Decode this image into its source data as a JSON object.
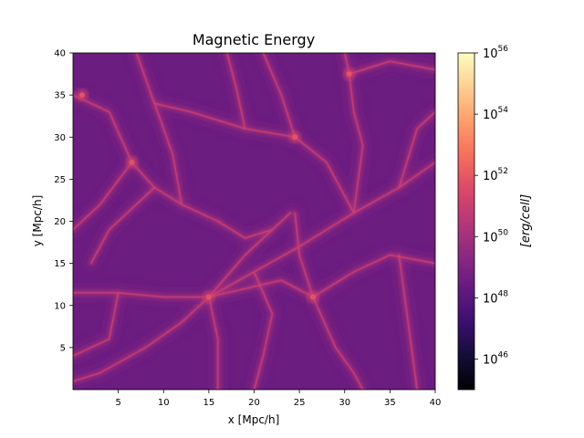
{
  "chart_data": {
    "type": "heatmap",
    "title": "Magnetic Energy",
    "xlabel": "x [Mpc/h]",
    "ylabel": "y [Mpc/h]",
    "xlim": [
      0,
      40
    ],
    "ylim": [
      0,
      40
    ],
    "xticks": [
      "5",
      "10",
      "15",
      "20",
      "25",
      "30",
      "35",
      "40"
    ],
    "yticks": [
      "5",
      "10",
      "15",
      "20",
      "25",
      "30",
      "35",
      "40"
    ],
    "colormap": "magma",
    "colorbar": {
      "label": "[erg/cell]",
      "scale": "log",
      "range_exponent": [
        45,
        56
      ],
      "ticks": [
        {
          "base": "10",
          "exp": "46"
        },
        {
          "base": "10",
          "exp": "48"
        },
        {
          "base": "10",
          "exp": "50"
        },
        {
          "base": "10",
          "exp": "52"
        },
        {
          "base": "10",
          "exp": "54"
        },
        {
          "base": "10",
          "exp": "56"
        }
      ]
    },
    "features": {
      "background_exponent": 48.5,
      "node_exponent": 52,
      "nodes": [
        {
          "x": 15,
          "y": 11
        },
        {
          "x": 26.5,
          "y": 11
        },
        {
          "x": 30.5,
          "y": 37.5
        },
        {
          "x": 1,
          "y": 35
        },
        {
          "x": 6.5,
          "y": 27
        },
        {
          "x": 24.5,
          "y": 30
        }
      ],
      "filaments": [
        [
          [
            0,
            11.5
          ],
          [
            5,
            11.5
          ],
          [
            10,
            11
          ],
          [
            15,
            11
          ]
        ],
        [
          [
            15,
            11
          ],
          [
            20,
            14
          ],
          [
            25,
            17
          ],
          [
            31,
            21
          ],
          [
            36,
            24
          ],
          [
            40,
            27
          ]
        ],
        [
          [
            15,
            11
          ],
          [
            12,
            8
          ],
          [
            8,
            5
          ],
          [
            3,
            2
          ],
          [
            0,
            1
          ]
        ],
        [
          [
            15,
            11
          ],
          [
            16,
            6
          ],
          [
            16,
            0
          ]
        ],
        [
          [
            15,
            11
          ],
          [
            19,
            16
          ],
          [
            22,
            19
          ],
          [
            24,
            21
          ]
        ],
        [
          [
            26.5,
            11
          ],
          [
            23,
            13
          ],
          [
            19,
            12
          ],
          [
            15,
            11
          ]
        ],
        [
          [
            26.5,
            11
          ],
          [
            29,
            5
          ],
          [
            31,
            2
          ],
          [
            32,
            0
          ]
        ],
        [
          [
            26.5,
            11
          ],
          [
            31,
            14
          ],
          [
            35,
            16
          ],
          [
            40,
            15
          ]
        ],
        [
          [
            26.5,
            11
          ],
          [
            25,
            16
          ],
          [
            24.5,
            21
          ]
        ],
        [
          [
            31,
            21
          ],
          [
            32,
            29
          ],
          [
            31,
            33
          ],
          [
            30.5,
            37.5
          ],
          [
            30,
            40
          ]
        ],
        [
          [
            30.5,
            37.5
          ],
          [
            35,
            39
          ],
          [
            40,
            38
          ]
        ],
        [
          [
            0,
            35
          ],
          [
            4,
            33
          ],
          [
            6.5,
            27
          ],
          [
            9,
            24
          ],
          [
            12,
            22
          ],
          [
            16,
            20
          ]
        ],
        [
          [
            6.5,
            27
          ],
          [
            3,
            22
          ],
          [
            0,
            19
          ]
        ],
        [
          [
            16,
            20
          ],
          [
            19,
            18
          ],
          [
            22,
            19
          ]
        ],
        [
          [
            24.5,
            30
          ],
          [
            28,
            27
          ],
          [
            31,
            21
          ]
        ],
        [
          [
            24.5,
            30
          ],
          [
            23,
            35
          ],
          [
            21,
            40
          ]
        ],
        [
          [
            24.5,
            30
          ],
          [
            19,
            31
          ],
          [
            13,
            33
          ],
          [
            9,
            34
          ]
        ],
        [
          [
            12,
            22
          ],
          [
            11,
            28
          ],
          [
            9,
            34
          ],
          [
            7,
            40
          ]
        ],
        [
          [
            36,
            24
          ],
          [
            38,
            31
          ],
          [
            40,
            33
          ]
        ],
        [
          [
            5,
            11.5
          ],
          [
            4,
            6
          ],
          [
            0,
            4
          ]
        ],
        [
          [
            20,
            14
          ],
          [
            22,
            9
          ],
          [
            21,
            4
          ],
          [
            20,
            0
          ]
        ],
        [
          [
            36,
            16
          ],
          [
            37,
            8
          ],
          [
            38,
            0
          ]
        ],
        [
          [
            19,
            31
          ],
          [
            18,
            36
          ],
          [
            17,
            40
          ]
        ],
        [
          [
            9,
            24
          ],
          [
            4,
            19
          ],
          [
            2,
            15
          ]
        ]
      ]
    }
  }
}
